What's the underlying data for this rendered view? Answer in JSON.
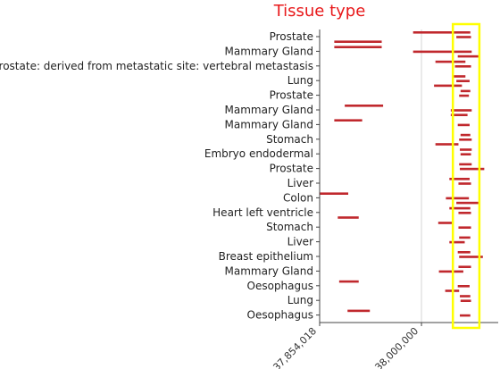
{
  "chart_data": {
    "type": "bar",
    "title": "Tissue type",
    "xlabel": "",
    "ylabel": "",
    "x_ticks": [
      {
        "value": 37854018,
        "label": "37,854,018"
      },
      {
        "value": 38000000,
        "label": "38,000,000"
      }
    ],
    "xlim": [
      37854018,
      38110000
    ],
    "grid": {
      "x": true,
      "y": false
    },
    "legend": "none",
    "highlight_box": {
      "x_range": [
        38045000,
        38083000
      ],
      "color": "#ffff00"
    },
    "bar_color": "#c0282d",
    "categories": [
      "Prostate",
      "Mammary Gland",
      "Prostate: derived from metastatic site: vertebral metastasis",
      "Lung",
      "Prostate",
      "Mammary Gland",
      "Mammary Gland",
      "Stomach",
      "Embryo endodermal",
      "Prostate",
      "Liver",
      "Colon",
      "Heart left ventricle",
      "Stomach",
      "Liver",
      "Breast epithelium",
      "Mammary Gland",
      "Oesophagus",
      "Lung",
      "Oesophagus"
    ],
    "segments": [
      {
        "row": 0,
        "start": 37988000,
        "end": 38070000
      },
      {
        "row": 0,
        "start": 38050000,
        "end": 38071000
      },
      {
        "row": 0,
        "start": 37875000,
        "end": 37943000
      },
      {
        "row": 1,
        "start": 37875000,
        "end": 37943000
      },
      {
        "row": 1,
        "start": 37988000,
        "end": 38072000
      },
      {
        "row": 1,
        "start": 38052000,
        "end": 38083000
      },
      {
        "row": 2,
        "start": 38020000,
        "end": 38063000
      },
      {
        "row": 2,
        "start": 38048000,
        "end": 38071000
      },
      {
        "row": 3,
        "start": 38045000,
        "end": 38063000
      },
      {
        "row": 3,
        "start": 38050000,
        "end": 38069000
      },
      {
        "row": 3,
        "start": 38018000,
        "end": 38058000
      },
      {
        "row": 4,
        "start": 38056000,
        "end": 38070000
      },
      {
        "row": 4,
        "start": 38054000,
        "end": 38068000
      },
      {
        "row": 5,
        "start": 37890000,
        "end": 37945000
      },
      {
        "row": 5,
        "start": 38042000,
        "end": 38072000
      },
      {
        "row": 5,
        "start": 38042000,
        "end": 38066000
      },
      {
        "row": 6,
        "start": 37875000,
        "end": 37915000
      },
      {
        "row": 6,
        "start": 38052000,
        "end": 38069000
      },
      {
        "row": 7,
        "start": 38056000,
        "end": 38070000
      },
      {
        "row": 7,
        "start": 38054000,
        "end": 38072000
      },
      {
        "row": 7,
        "start": 38020000,
        "end": 38053000
      },
      {
        "row": 8,
        "start": 38055000,
        "end": 38072000
      },
      {
        "row": 8,
        "start": 38056000,
        "end": 38071000
      },
      {
        "row": 9,
        "start": 38054000,
        "end": 38072000
      },
      {
        "row": 9,
        "start": 38055000,
        "end": 38090000
      },
      {
        "row": 10,
        "start": 38040000,
        "end": 38069000
      },
      {
        "row": 10,
        "start": 38053000,
        "end": 38071000
      },
      {
        "row": 11,
        "start": 37854018,
        "end": 37895000
      },
      {
        "row": 11,
        "start": 38035000,
        "end": 38068000
      },
      {
        "row": 11,
        "start": 38050000,
        "end": 38084000
      },
      {
        "row": 12,
        "start": 38040000,
        "end": 38070000
      },
      {
        "row": 12,
        "start": 38053000,
        "end": 38071000
      },
      {
        "row": 12,
        "start": 37880000,
        "end": 37910000
      },
      {
        "row": 13,
        "start": 38024000,
        "end": 38045000
      },
      {
        "row": 13,
        "start": 38053000,
        "end": 38071000
      },
      {
        "row": 14,
        "start": 38054000,
        "end": 38070000
      },
      {
        "row": 14,
        "start": 38040000,
        "end": 38062000
      },
      {
        "row": 15,
        "start": 38052000,
        "end": 38070000
      },
      {
        "row": 15,
        "start": 38054000,
        "end": 38088000
      },
      {
        "row": 16,
        "start": 38053000,
        "end": 38071000
      },
      {
        "row": 16,
        "start": 38025000,
        "end": 38060000
      },
      {
        "row": 17,
        "start": 37882000,
        "end": 37910000
      },
      {
        "row": 17,
        "start": 38052000,
        "end": 38069000
      },
      {
        "row": 17,
        "start": 38034000,
        "end": 38054000
      },
      {
        "row": 18,
        "start": 38055000,
        "end": 38070000
      },
      {
        "row": 18,
        "start": 38056000,
        "end": 38071000
      },
      {
        "row": 19,
        "start": 37894000,
        "end": 37926000
      },
      {
        "row": 19,
        "start": 38055000,
        "end": 38070000
      }
    ]
  }
}
